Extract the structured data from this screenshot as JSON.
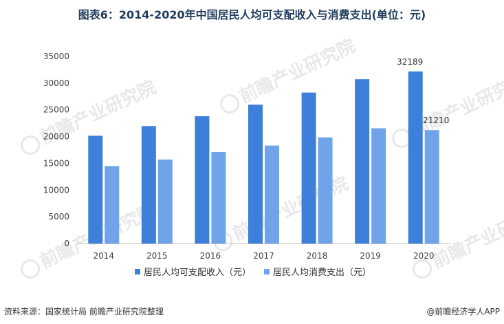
{
  "title": "图表6：2014-2020年中国居民人均可支配收入与消费支出(单位：元)",
  "source": "资料来源：国家统计局 前瞻产业研究院整理",
  "brand": "@前瞻经济学人APP",
  "watermark": "前瞻产业研究院",
  "colors": {
    "series1": "#3d7fda",
    "series2": "#6fa4ea",
    "axis": "#bfbfbf",
    "text": "#404040"
  },
  "chart_data": {
    "type": "bar",
    "categories": [
      "2014",
      "2015",
      "2016",
      "2017",
      "2018",
      "2019",
      "2020"
    ],
    "series": [
      {
        "name": "居民人均可支配收入（元）",
        "values": [
          20167,
          21966,
          23821,
          25974,
          28228,
          30733,
          32189
        ]
      },
      {
        "name": "居民人均消费支出（元）",
        "values": [
          14491,
          15712,
          17111,
          18322,
          19853,
          21559,
          21210
        ]
      }
    ],
    "ylim": [
      0,
      35000
    ],
    "yticks": [
      "0",
      "5000",
      "10000",
      "15000",
      "20000",
      "25000",
      "30000",
      "35000"
    ],
    "data_labels": [
      {
        "series": 0,
        "index": 6,
        "text": "32189"
      },
      {
        "series": 1,
        "index": 6,
        "text": "21210"
      }
    ],
    "grid": false,
    "legend": "bottom"
  }
}
